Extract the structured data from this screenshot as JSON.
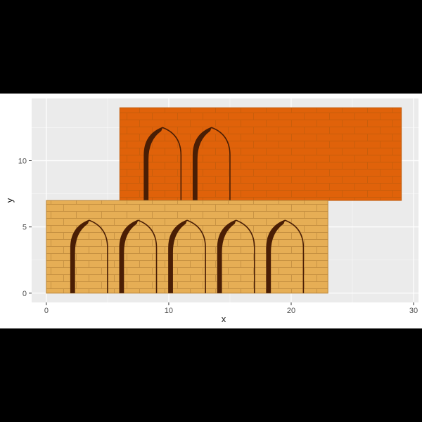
{
  "chart_data": {
    "type": "other",
    "xlabel": "x",
    "ylabel": "y",
    "xlim": [
      -1.2,
      30.4
    ],
    "ylim": [
      -0.7,
      14.7
    ],
    "x_ticks": [
      0,
      10,
      20,
      30
    ],
    "y_ticks": [
      0,
      5,
      10
    ],
    "x_tick_labels": [
      "0",
      "10",
      "20",
      "30"
    ],
    "y_tick_labels": [
      "0",
      "5",
      "10"
    ],
    "grid": true,
    "walls": [
      {
        "name": "",
        "x": [
          6,
          29
        ],
        "y": [
          7,
          14
        ],
        "fill": "#E0620A",
        "line": "#C05A0A",
        "arches": [
          {
            "x": [
              8,
              11
            ],
            "y_bottom": 7,
            "y_top": 12.5
          },
          {
            "x": [
              12,
              15
            ],
            "y_bottom": 7,
            "y_top": 12.5
          }
        ]
      },
      {
        "name": "",
        "x": [
          0,
          23
        ],
        "y": [
          0,
          7
        ],
        "fill": "#E6AE55",
        "line": "#B9853A",
        "arches": [
          {
            "x": [
              2,
              5
            ],
            "y_bottom": 0,
            "y_top": 5.5
          },
          {
            "x": [
              6,
              9
            ],
            "y_bottom": 0,
            "y_top": 5.5
          },
          {
            "x": [
              10,
              13
            ],
            "y_bottom": 0,
            "y_top": 5.5
          },
          {
            "x": [
              14,
              17
            ],
            "y_bottom": 0,
            "y_top": 5.5
          },
          {
            "x": [
              18,
              21
            ],
            "y_bottom": 0,
            "y_top": 5.5
          }
        ]
      }
    ],
    "colors": {
      "arch_outline": "#4A1E05",
      "panel": "#EBEBEB",
      "grid": "#FFFFFF",
      "frame": "#FFFFFF",
      "background": "#000000",
      "text": "#1A1A1A",
      "tick_label": "#4D4D4D"
    }
  }
}
